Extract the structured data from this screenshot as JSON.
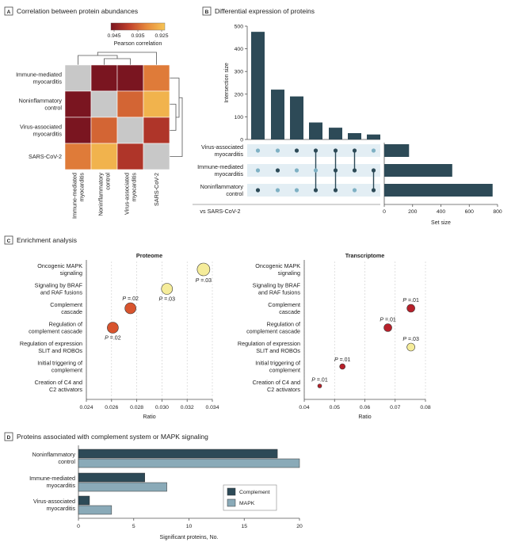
{
  "panels": {
    "A": {
      "letter": "A",
      "title": "Correlation between protein abundances"
    },
    "B": {
      "letter": "B",
      "title": "Differential expression of proteins"
    },
    "C": {
      "letter": "C",
      "title": "Enrichment analysis"
    },
    "D": {
      "letter": "D",
      "title": "Proteins associated with complement system or MAPK signaling"
    }
  },
  "chart_data": [
    {
      "id": "A",
      "type": "heatmap",
      "rows": [
        [
          "Immune-mediated",
          "myocarditis"
        ],
        [
          "Noninflammatory",
          "control"
        ],
        [
          "Virus-associated",
          "myocarditis"
        ],
        [
          "SARS-CoV-2"
        ]
      ],
      "cols": [
        [
          "Immune-mediated",
          "myocarditis"
        ],
        [
          "Noninflammatory",
          "control"
        ],
        [
          "Virus-associated",
          "myocarditis"
        ],
        [
          "SARS-CoV-2"
        ]
      ],
      "values": [
        [
          1.0,
          0.946,
          0.945,
          0.933
        ],
        [
          0.946,
          1.0,
          0.935,
          0.927
        ],
        [
          0.945,
          0.935,
          1.0,
          0.94
        ],
        [
          0.933,
          0.927,
          0.94,
          1.0
        ]
      ],
      "diagonal_color": "#c8c8c8",
      "colorbar": {
        "title": "Pearson correlation",
        "ticks": [
          "0.945",
          "0.935",
          "0.925"
        ],
        "range": [
          0.945,
          0.925
        ],
        "colors": [
          "#7a1520",
          "#c0402c",
          "#e78a3c",
          "#f6c455"
        ]
      }
    },
    {
      "id": "B",
      "type": "bar",
      "ylabel": "Intersection size",
      "yticks": [
        0,
        100,
        200,
        300,
        400,
        500
      ],
      "ylim": [
        0,
        500
      ],
      "intersection_sizes": [
        475,
        220,
        190,
        75,
        52,
        28,
        22
      ],
      "set_names": [
        [
          "Virus-associated",
          "myocarditis"
        ],
        [
          "Immune-mediated",
          "myocarditis"
        ],
        [
          "Noninflammatory",
          "control"
        ]
      ],
      "set_sizes": [
        175,
        480,
        765
      ],
      "set_xlabel": "Set size",
      "set_xticks": [
        0,
        200,
        400,
        600,
        800
      ],
      "membership": [
        [
          2
        ],
        [
          1
        ],
        [
          0
        ],
        [
          0,
          2
        ],
        [
          0,
          1,
          2
        ],
        [
          0,
          1
        ],
        [
          1,
          2
        ]
      ],
      "bottom_label": "vs SARS-CoV-2",
      "bar_color": "#2d4a57"
    },
    {
      "id": "C1",
      "type": "scatter",
      "title": "Proteome",
      "xlabel": "Ratio",
      "xlim": [
        0.024,
        0.034
      ],
      "xticks": [
        "0.024",
        "0.026",
        "0.028",
        "0.030",
        "0.032",
        "0.034"
      ],
      "categories": [
        [
          "Oncogenic MAPK",
          "signaling"
        ],
        [
          "Signaling by BRAF",
          "and RAF fusions"
        ],
        [
          "Complement",
          "cascade"
        ],
        [
          "Regulation of",
          "complement cascade"
        ],
        [
          "Regulation of expression",
          "SLIT and ROBOs"
        ],
        [
          "Initial triggering of",
          "complement"
        ],
        [
          "Creation of C4 and",
          "C2 activators"
        ]
      ],
      "points": [
        {
          "row": 0,
          "x": 0.0333,
          "p": "P =.03",
          "color": "#f5ec9a",
          "r": 8,
          "lpos": "below"
        },
        {
          "row": 1,
          "x": 0.0304,
          "p": "P =.03",
          "color": "#f5ec9a",
          "r": 7,
          "lpos": "below"
        },
        {
          "row": 2,
          "x": 0.0275,
          "p": "P =.02",
          "color": "#d8542e",
          "r": 7,
          "lpos": "above"
        },
        {
          "row": 3,
          "x": 0.0261,
          "p": "P =.02",
          "color": "#d8542e",
          "r": 7,
          "lpos": "below"
        }
      ]
    },
    {
      "id": "C2",
      "type": "scatter",
      "title": "Transcriptome",
      "xlabel": "Ratio",
      "xlim": [
        0.04,
        0.08
      ],
      "xticks": [
        "0.04",
        "0.05",
        "0.06",
        "0.07",
        "0.08"
      ],
      "categories": [
        [
          "Oncogenic MAPK",
          "signaling"
        ],
        [
          "Signaling by BRAF",
          "and RAF fusions"
        ],
        [
          "Complement",
          "cascade"
        ],
        [
          "Regulation of",
          "complement cascade"
        ],
        [
          "Regulation of expression",
          "SLIT and ROBOs"
        ],
        [
          "Initial triggering of",
          "complement"
        ],
        [
          "Creation of C4 and",
          "C2 activators"
        ]
      ],
      "points": [
        {
          "row": 2,
          "x": 0.0752,
          "p": "P =.01",
          "color": "#b7202a",
          "r": 5,
          "lpos": "above"
        },
        {
          "row": 3,
          "x": 0.0676,
          "p": "P =.01",
          "color": "#b7202a",
          "r": 5,
          "lpos": "above"
        },
        {
          "row": 4,
          "x": 0.0752,
          "p": "P =.03",
          "color": "#f5ec9a",
          "r": 5,
          "lpos": "above"
        },
        {
          "row": 5,
          "x": 0.0526,
          "p": "P =.01",
          "color": "#b7202a",
          "r": 3.5,
          "lpos": "above"
        },
        {
          "row": 6,
          "x": 0.0451,
          "p": "P =.01",
          "color": "#b7202a",
          "r": 2.5,
          "lpos": "above"
        }
      ]
    },
    {
      "id": "D",
      "type": "bar",
      "orientation": "horizontal",
      "categories": [
        [
          "Noninflammatory",
          "control"
        ],
        [
          "Immune-mediated",
          "myocarditis"
        ],
        [
          "Virus-associated",
          "myocarditis"
        ]
      ],
      "series": [
        {
          "name": "Complement",
          "values": [
            18,
            6,
            1
          ],
          "color": "#2d4a57"
        },
        {
          "name": "MAPK",
          "values": [
            20,
            8,
            3
          ],
          "color": "#8aaab8"
        }
      ],
      "xlabel": "Significant proteins, No.",
      "xticks": [
        0,
        5,
        10,
        15,
        20
      ],
      "xlim": [
        0,
        20
      ],
      "legend": "right"
    }
  ]
}
